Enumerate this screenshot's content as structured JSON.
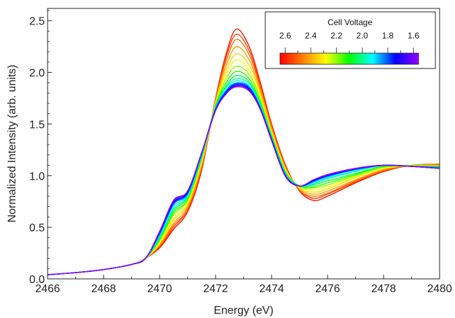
{
  "chart_data": {
    "type": "line",
    "xlabel": "Energy (eV)",
    "ylabel": "Normalized Intensity (arb. units)",
    "xlim": [
      2466,
      2480
    ],
    "ylim": [
      0,
      2.62
    ],
    "x_ticks": [
      2466,
      2468,
      2470,
      2472,
      2474,
      2476,
      2478,
      2480
    ],
    "y_ticks": [
      0.0,
      0.5,
      1.0,
      1.5,
      2.0,
      2.5
    ],
    "x_tick_labels": [
      "2466",
      "2468",
      "2470",
      "2472",
      "2474",
      "2476",
      "2478",
      "2480"
    ],
    "y_tick_labels": [
      "0.0",
      "0.5",
      "1.0",
      "1.5",
      "2.0",
      "2.5"
    ],
    "grid": false,
    "colorbar": {
      "title": "Cell Voltage",
      "tick_values": [
        2.6,
        2.4,
        2.2,
        2.0,
        1.8,
        1.6
      ],
      "tick_labels": [
        "2.6",
        "2.4",
        "2.2",
        "2.0",
        "1.8",
        "1.6"
      ],
      "range": [
        2.64,
        1.56
      ],
      "colormap": [
        "#ff0000",
        "#ff8000",
        "#ffff00",
        "#00ff00",
        "#00ffff",
        "#0000ff",
        "#9900ff"
      ],
      "placement": "top-right"
    },
    "x": [
      2466,
      2467,
      2468,
      2469,
      2469.5,
      2470,
      2470.5,
      2471,
      2471.5,
      2472,
      2472.4,
      2472.75,
      2473.2,
      2473.6,
      2474,
      2474.5,
      2475,
      2475.5,
      2476,
      2477,
      2478,
      2479,
      2480
    ],
    "series": [
      {
        "voltage": 2.62,
        "values": [
          0.04,
          0.06,
          0.09,
          0.14,
          0.2,
          0.3,
          0.48,
          0.65,
          1.05,
          1.75,
          2.2,
          2.42,
          2.25,
          1.9,
          1.5,
          1.1,
          0.85,
          0.76,
          0.8,
          0.93,
          1.04,
          1.1,
          1.11
        ]
      },
      {
        "voltage": 2.55,
        "values": [
          0.04,
          0.06,
          0.09,
          0.14,
          0.2,
          0.31,
          0.5,
          0.67,
          1.07,
          1.74,
          2.17,
          2.37,
          2.21,
          1.87,
          1.48,
          1.09,
          0.86,
          0.78,
          0.82,
          0.94,
          1.05,
          1.1,
          1.11
        ]
      },
      {
        "voltage": 2.48,
        "values": [
          0.04,
          0.06,
          0.09,
          0.14,
          0.2,
          0.32,
          0.52,
          0.68,
          1.09,
          1.73,
          2.13,
          2.32,
          2.17,
          1.85,
          1.47,
          1.08,
          0.86,
          0.8,
          0.83,
          0.95,
          1.05,
          1.1,
          1.1
        ]
      },
      {
        "voltage": 2.41,
        "values": [
          0.04,
          0.06,
          0.09,
          0.14,
          0.2,
          0.33,
          0.54,
          0.7,
          1.1,
          1.72,
          2.08,
          2.25,
          2.12,
          1.82,
          1.45,
          1.07,
          0.87,
          0.82,
          0.85,
          0.96,
          1.06,
          1.1,
          1.1
        ]
      },
      {
        "voltage": 2.34,
        "values": [
          0.04,
          0.06,
          0.09,
          0.14,
          0.2,
          0.34,
          0.57,
          0.72,
          1.12,
          1.71,
          2.03,
          2.18,
          2.07,
          1.79,
          1.43,
          1.06,
          0.88,
          0.84,
          0.87,
          0.98,
          1.07,
          1.1,
          1.1
        ]
      },
      {
        "voltage": 2.27,
        "values": [
          0.04,
          0.06,
          0.09,
          0.14,
          0.2,
          0.35,
          0.59,
          0.74,
          1.14,
          1.7,
          1.99,
          2.12,
          2.02,
          1.76,
          1.42,
          1.05,
          0.89,
          0.86,
          0.89,
          0.99,
          1.07,
          1.1,
          1.09
        ]
      },
      {
        "voltage": 2.2,
        "values": [
          0.04,
          0.06,
          0.09,
          0.14,
          0.2,
          0.37,
          0.62,
          0.76,
          1.16,
          1.69,
          1.95,
          2.06,
          1.98,
          1.74,
          1.4,
          1.04,
          0.89,
          0.88,
          0.91,
          1.0,
          1.08,
          1.1,
          1.09
        ]
      },
      {
        "voltage": 2.13,
        "values": [
          0.04,
          0.06,
          0.09,
          0.14,
          0.2,
          0.38,
          0.64,
          0.77,
          1.17,
          1.68,
          1.91,
          2.01,
          1.94,
          1.71,
          1.39,
          1.03,
          0.9,
          0.89,
          0.93,
          1.01,
          1.09,
          1.09,
          1.09
        ]
      },
      {
        "voltage": 2.06,
        "values": [
          0.04,
          0.06,
          0.09,
          0.14,
          0.2,
          0.39,
          0.66,
          0.79,
          1.18,
          1.67,
          1.88,
          1.97,
          1.91,
          1.69,
          1.38,
          1.02,
          0.9,
          0.91,
          0.95,
          1.02,
          1.09,
          1.09,
          1.08
        ]
      },
      {
        "voltage": 1.99,
        "values": [
          0.04,
          0.06,
          0.09,
          0.14,
          0.2,
          0.41,
          0.68,
          0.8,
          1.19,
          1.66,
          1.86,
          1.94,
          1.89,
          1.68,
          1.37,
          1.01,
          0.9,
          0.92,
          0.97,
          1.04,
          1.1,
          1.09,
          1.08
        ]
      },
      {
        "voltage": 1.92,
        "values": [
          0.04,
          0.06,
          0.09,
          0.14,
          0.2,
          0.42,
          0.7,
          0.81,
          1.2,
          1.65,
          1.84,
          1.92,
          1.87,
          1.67,
          1.36,
          1.01,
          0.9,
          0.93,
          0.98,
          1.05,
          1.1,
          1.09,
          1.08
        ]
      },
      {
        "voltage": 1.85,
        "values": [
          0.04,
          0.06,
          0.09,
          0.14,
          0.2,
          0.43,
          0.72,
          0.82,
          1.21,
          1.65,
          1.83,
          1.9,
          1.86,
          1.66,
          1.36,
          1.0,
          0.9,
          0.94,
          0.99,
          1.06,
          1.1,
          1.09,
          1.08
        ]
      },
      {
        "voltage": 1.78,
        "values": [
          0.04,
          0.06,
          0.09,
          0.14,
          0.2,
          0.44,
          0.73,
          0.83,
          1.21,
          1.64,
          1.82,
          1.89,
          1.85,
          1.65,
          1.35,
          1.0,
          0.9,
          0.95,
          1.0,
          1.06,
          1.1,
          1.09,
          1.07
        ]
      },
      {
        "voltage": 1.71,
        "values": [
          0.04,
          0.06,
          0.09,
          0.14,
          0.2,
          0.45,
          0.74,
          0.84,
          1.22,
          1.64,
          1.81,
          1.88,
          1.84,
          1.65,
          1.35,
          1.0,
          0.9,
          0.95,
          1.0,
          1.07,
          1.1,
          1.09,
          1.07
        ]
      },
      {
        "voltage": 1.64,
        "values": [
          0.04,
          0.06,
          0.09,
          0.14,
          0.2,
          0.45,
          0.75,
          0.85,
          1.22,
          1.63,
          1.8,
          1.87,
          1.83,
          1.64,
          1.34,
          0.99,
          0.9,
          0.96,
          1.01,
          1.07,
          1.1,
          1.09,
          1.07
        ]
      },
      {
        "voltage": 1.58,
        "values": [
          0.04,
          0.06,
          0.09,
          0.14,
          0.2,
          0.46,
          0.76,
          0.85,
          1.22,
          1.63,
          1.8,
          1.86,
          1.82,
          1.64,
          1.34,
          0.99,
          0.9,
          0.96,
          1.01,
          1.07,
          1.1,
          1.09,
          1.07
        ]
      }
    ]
  }
}
